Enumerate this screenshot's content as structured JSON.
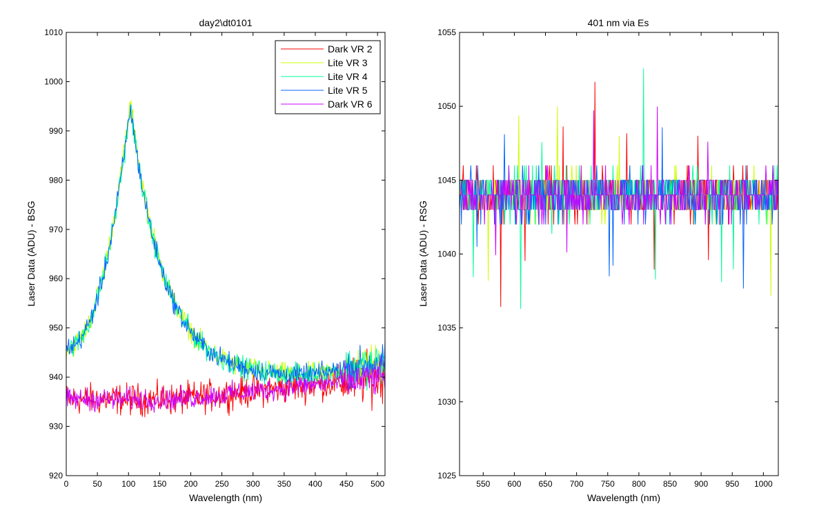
{
  "chart_data": [
    {
      "type": "line",
      "title": "day2\\dt0101",
      "xlabel": "Wavelength (nm)",
      "ylabel": "Laser Data (ADU) - BSG",
      "xlim": [
        0,
        512
      ],
      "ylim": [
        920,
        1010
      ],
      "xticks": [
        "0",
        "50",
        "100",
        "150",
        "200",
        "250",
        "300",
        "350",
        "400",
        "450",
        "500"
      ],
      "yticks": [
        "920",
        "930",
        "940",
        "950",
        "960",
        "970",
        "980",
        "990",
        "1000",
        "1010"
      ],
      "grid": false,
      "legend_position": "top-right",
      "series": [
        {
          "name": "Dark VR 2",
          "color": "#ff0000",
          "kind": "dark",
          "shape": "flat",
          "base": 935.5,
          "end": 940,
          "noise": 3.5
        },
        {
          "name": "Lite VR 3",
          "color": "#ccff00",
          "kind": "lite",
          "shape": "peak",
          "base": 946,
          "peak": 996,
          "peak_x": 103,
          "tail": 940,
          "end": 943,
          "noise": 2.5
        },
        {
          "name": "Lite VR 4",
          "color": "#00ff99",
          "kind": "lite",
          "shape": "peak",
          "base": 946,
          "peak": 995,
          "peak_x": 103,
          "tail": 940,
          "end": 943,
          "noise": 2.5
        },
        {
          "name": "Lite VR 5",
          "color": "#0066ff",
          "kind": "lite",
          "shape": "peak",
          "base": 946,
          "peak": 995,
          "peak_x": 103,
          "tail": 940,
          "end": 943,
          "noise": 2.3
        },
        {
          "name": "Dark VR 6",
          "color": "#cc00ff",
          "kind": "dark",
          "shape": "flat",
          "base": 935.5,
          "end": 940,
          "noise": 2.5
        }
      ]
    },
    {
      "type": "line",
      "title": "401 nm via Es",
      "xlabel": "Wavelength (nm)",
      "ylabel": "Laser Data (ADU) - RSG",
      "xlim": [
        512,
        1024
      ],
      "ylim": [
        1025,
        1055
      ],
      "xticks": [
        "550",
        "600",
        "650",
        "700",
        "750",
        "800",
        "850",
        "900",
        "950",
        "1000"
      ],
      "yticks": [
        "1025",
        "1030",
        "1035",
        "1040",
        "1045",
        "1050",
        "1055"
      ],
      "grid": false,
      "series": [
        {
          "name": "Dark VR 2",
          "color": "#ff0000",
          "base": 1044,
          "noise": 1.8
        },
        {
          "name": "Lite VR 3",
          "color": "#ccff00",
          "base": 1044,
          "noise": 1.8
        },
        {
          "name": "Lite VR 4",
          "color": "#00ff99",
          "base": 1044,
          "noise": 1.8
        },
        {
          "name": "Lite VR 5",
          "color": "#0066ff",
          "base": 1044,
          "noise": 1.8
        },
        {
          "name": "Dark VR 6",
          "color": "#cc00ff",
          "base": 1044,
          "noise": 1.8
        }
      ]
    }
  ]
}
